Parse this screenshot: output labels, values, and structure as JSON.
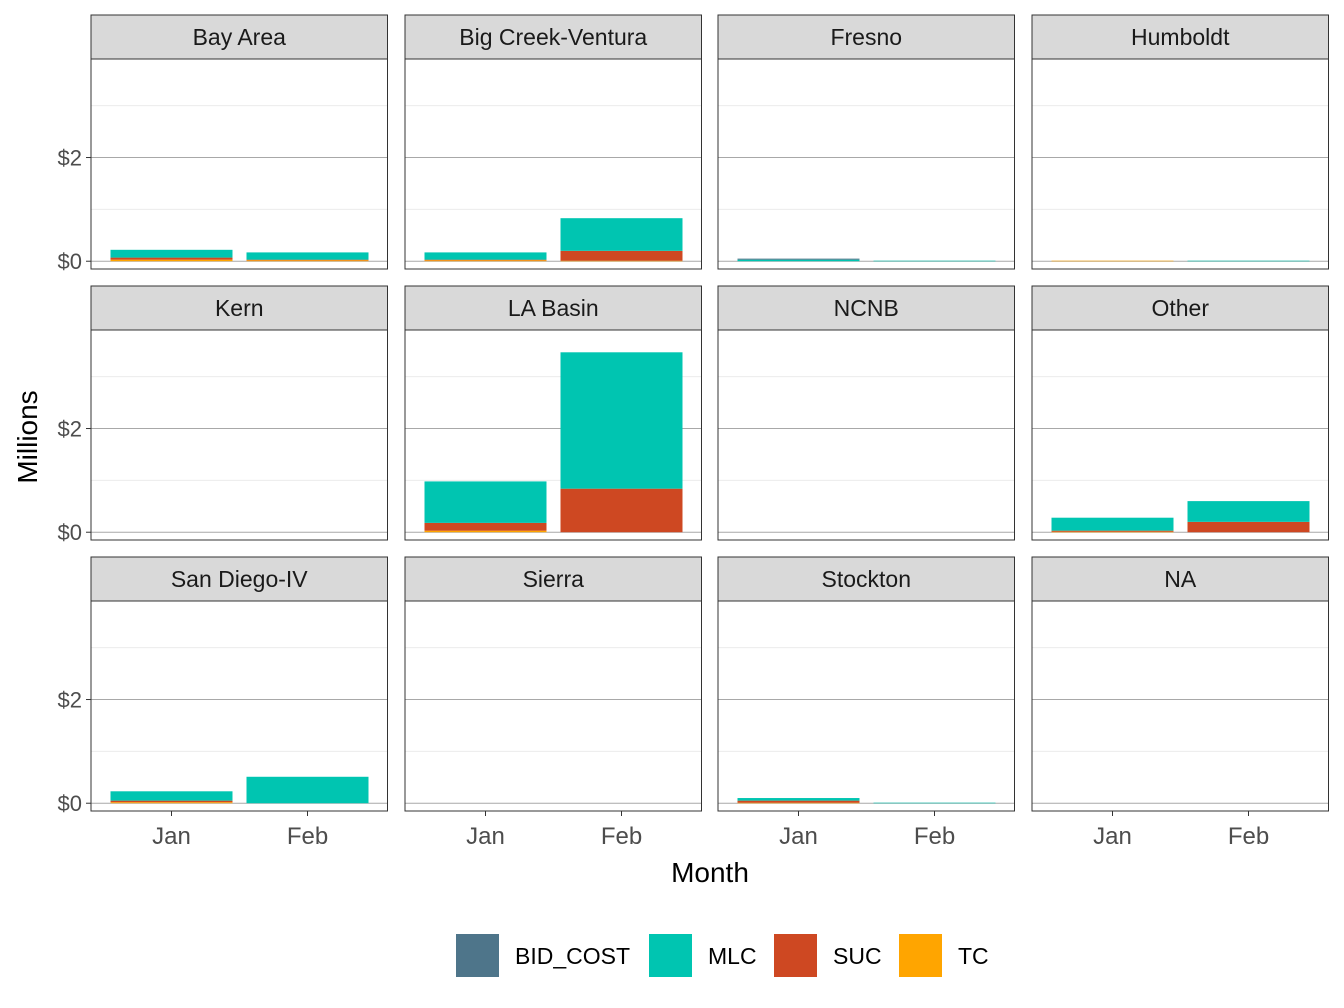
{
  "chart_data": {
    "type": "bar",
    "layout": "faceted stacked bar",
    "xlabel": "Month",
    "ylabel": "Millions",
    "categories": [
      "Jan",
      "Feb"
    ],
    "ylim": [
      -0.15,
      3.9
    ],
    "yticks": [
      0,
      2
    ],
    "ytick_labels": [
      "$0",
      "$2"
    ],
    "grid": true,
    "legend_position": "bottom",
    "legend": [
      {
        "name": "BID_COST",
        "color": "#4E758A"
      },
      {
        "name": "MLC",
        "color": "#00C5B1"
      },
      {
        "name": "SUC",
        "color": "#CE4822"
      },
      {
        "name": "TC",
        "color": "#FFA500"
      }
    ],
    "panels": [
      {
        "title": "Bay Area",
        "stacks": [
          {
            "x": "Jan",
            "TC": 0.03,
            "SUC": 0.04,
            "MLC": 0.15,
            "BID_COST": 0
          },
          {
            "x": "Feb",
            "TC": 0.02,
            "SUC": 0.01,
            "MLC": 0.14,
            "BID_COST": 0
          }
        ]
      },
      {
        "title": "Big Creek-Ventura",
        "stacks": [
          {
            "x": "Jan",
            "TC": 0.02,
            "SUC": 0.01,
            "MLC": 0.14,
            "BID_COST": 0
          },
          {
            "x": "Feb",
            "TC": 0.01,
            "SUC": 0.19,
            "MLC": 0.63,
            "BID_COST": 0
          }
        ]
      },
      {
        "title": "Fresno",
        "stacks": [
          {
            "x": "Jan",
            "TC": 0,
            "SUC": 0,
            "MLC": 0.03,
            "BID_COST": 0.02
          },
          {
            "x": "Feb",
            "TC": 0,
            "SUC": 0,
            "MLC": 0.01,
            "BID_COST": 0
          }
        ]
      },
      {
        "title": "Humboldt",
        "stacks": [
          {
            "x": "Jan",
            "TC": 0.01,
            "SUC": 0,
            "MLC": 0,
            "BID_COST": 0
          },
          {
            "x": "Feb",
            "TC": 0,
            "SUC": 0,
            "MLC": 0.01,
            "BID_COST": 0
          }
        ]
      },
      {
        "title": "Kern",
        "stacks": [
          {
            "x": "Jan",
            "TC": 0,
            "SUC": 0,
            "MLC": 0,
            "BID_COST": 0
          },
          {
            "x": "Feb",
            "TC": 0,
            "SUC": 0,
            "MLC": 0,
            "BID_COST": 0
          }
        ]
      },
      {
        "title": "LA Basin",
        "stacks": [
          {
            "x": "Jan",
            "TC": 0.03,
            "SUC": 0.15,
            "MLC": 0.8,
            "BID_COST": 0
          },
          {
            "x": "Feb",
            "TC": 0,
            "SUC": 0.84,
            "MLC": 2.63,
            "BID_COST": 0
          }
        ]
      },
      {
        "title": "NCNB",
        "stacks": [
          {
            "x": "Jan",
            "TC": 0,
            "SUC": 0,
            "MLC": 0,
            "BID_COST": 0
          },
          {
            "x": "Feb",
            "TC": 0,
            "SUC": 0,
            "MLC": 0,
            "BID_COST": 0
          }
        ]
      },
      {
        "title": "Other",
        "stacks": [
          {
            "x": "Jan",
            "TC": 0.01,
            "SUC": 0.02,
            "MLC": 0.25,
            "BID_COST": 0
          },
          {
            "x": "Feb",
            "TC": 0,
            "SUC": 0.2,
            "MLC": 0.4,
            "BID_COST": 0
          }
        ]
      },
      {
        "title": "San Diego-IV",
        "stacks": [
          {
            "x": "Jan",
            "TC": 0.02,
            "SUC": 0.03,
            "MLC": 0.18,
            "BID_COST": 0
          },
          {
            "x": "Feb",
            "TC": 0,
            "SUC": 0,
            "MLC": 0.51,
            "BID_COST": 0
          }
        ]
      },
      {
        "title": "Sierra",
        "stacks": [
          {
            "x": "Jan",
            "TC": 0,
            "SUC": 0,
            "MLC": 0,
            "BID_COST": 0
          },
          {
            "x": "Feb",
            "TC": 0,
            "SUC": 0,
            "MLC": 0,
            "BID_COST": 0
          }
        ]
      },
      {
        "title": "Stockton",
        "stacks": [
          {
            "x": "Jan",
            "TC": 0.01,
            "SUC": 0.04,
            "MLC": 0.05,
            "BID_COST": 0
          },
          {
            "x": "Feb",
            "TC": 0,
            "SUC": 0,
            "MLC": 0.01,
            "BID_COST": 0
          }
        ]
      },
      {
        "title": "NA",
        "stacks": [
          {
            "x": "Jan",
            "TC": 0,
            "SUC": 0,
            "MLC": 0,
            "BID_COST": 0
          },
          {
            "x": "Feb",
            "TC": 0,
            "SUC": 0,
            "MLC": 0,
            "BID_COST": 0
          }
        ]
      }
    ]
  }
}
